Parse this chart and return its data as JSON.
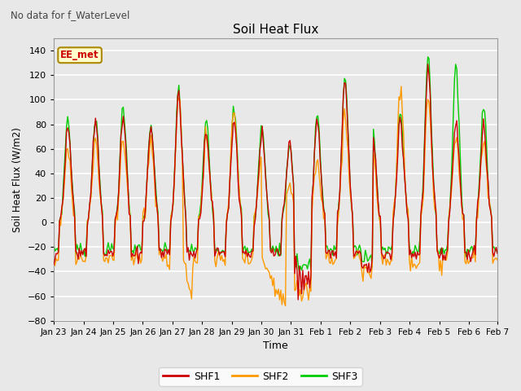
{
  "title": "Soil Heat Flux",
  "suptitle": "No data for f_WaterLevel",
  "xlabel": "Time",
  "ylabel": "Soil Heat Flux (W/m2)",
  "ylim": [
    -80,
    150
  ],
  "yticks": [
    -80,
    -60,
    -40,
    -20,
    0,
    20,
    40,
    60,
    80,
    100,
    120,
    140
  ],
  "background_color": "#e8e8e8",
  "plot_bg_color": "#e8e8e8",
  "grid_color": "white",
  "line_colors": {
    "SHF1": "#cc0000",
    "SHF2": "#ff9900",
    "SHF3": "#00cc00"
  },
  "line_width": 1.0,
  "legend_box_color": "#ffffcc",
  "legend_box_edge": "#aa8800",
  "annotation_text": "EE_met",
  "annotation_color": "#cc0000",
  "xtick_labels": [
    "Jan 23",
    "Jan 24",
    "Jan 25",
    "Jan 26",
    "Jan 27",
    "Jan 28",
    "Jan 29",
    "Jan 30",
    "Jan 31",
    "Feb 1",
    "Feb 2",
    "Feb 3",
    "Feb 4",
    "Feb 5",
    "Feb 6",
    "Feb 7"
  ],
  "n_points": 384,
  "seed": 7
}
